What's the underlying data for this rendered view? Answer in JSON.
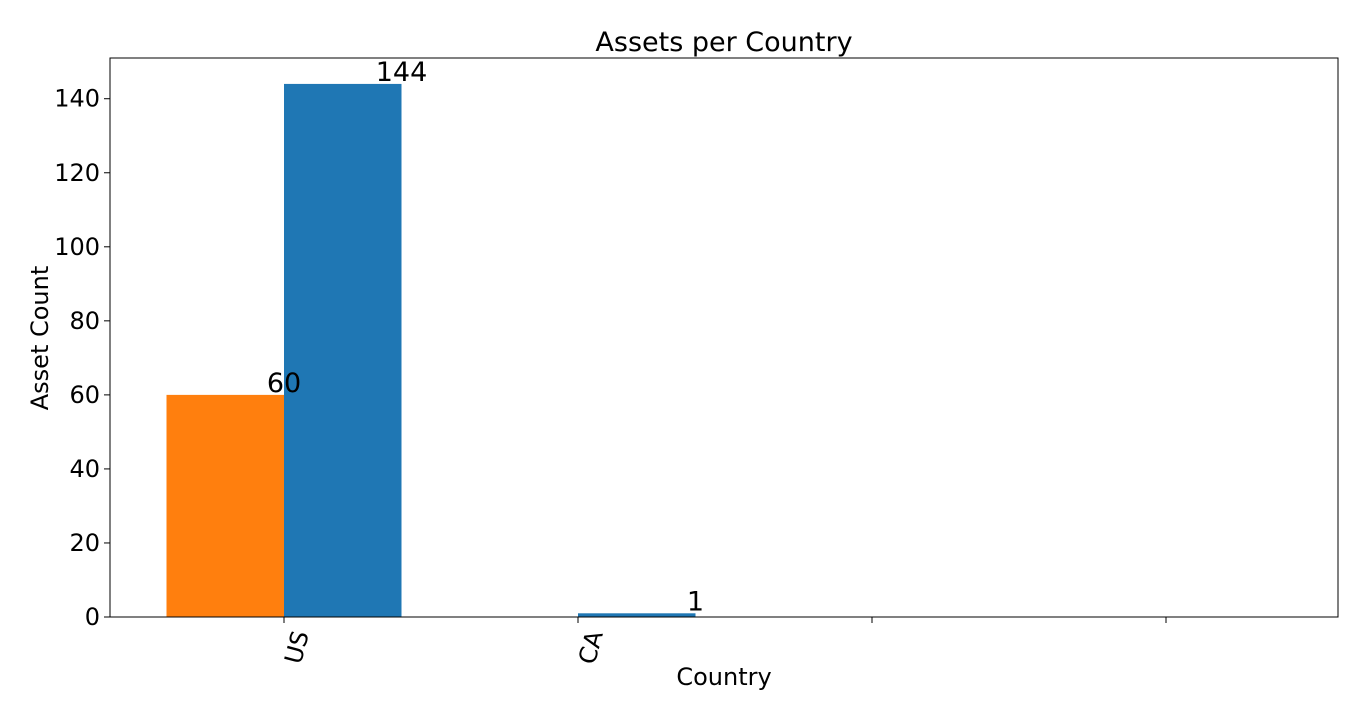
{
  "chart_data": {
    "type": "bar",
    "title": "Assets per Country",
    "xlabel": "Country",
    "ylabel": "Asset Count",
    "categories": [
      "US",
      "CA",
      "",
      ""
    ],
    "series": [
      {
        "values": [
          60,
          null,
          null,
          null
        ],
        "color": "#ff7f0e"
      },
      {
        "values": [
          144,
          1,
          null,
          null
        ],
        "color": "#1f77b4"
      }
    ],
    "data_labels": [
      {
        "category": 0,
        "series": 0,
        "text": "60"
      },
      {
        "category": 0,
        "series": 1,
        "text": "144"
      },
      {
        "category": 1,
        "series": 1,
        "text": "1"
      }
    ],
    "ylim": [
      0,
      151
    ],
    "yticks": [
      0,
      20,
      40,
      60,
      80,
      100,
      120,
      140
    ],
    "ytick_labels": [
      "0",
      "20",
      "40",
      "60",
      "80",
      "100",
      "120",
      "140"
    ],
    "grid": false,
    "legend": "none"
  }
}
